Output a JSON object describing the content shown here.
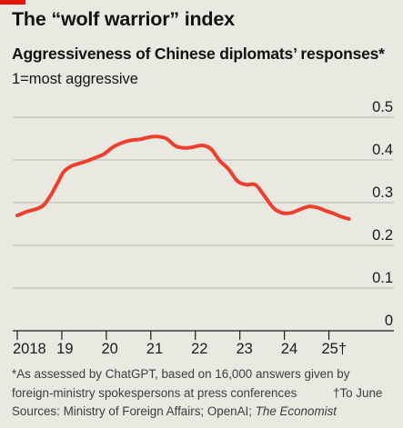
{
  "header": {
    "title": "The “wolf warrior” index",
    "subtitle": "Aggressiveness of Chinese diplomats’ responses*",
    "unit": "1=most aggressive"
  },
  "footnotes": {
    "line1": "*As assessed by ChatGPT, based on 16,000 answers given by",
    "line2": "foreign-ministry spokespersons at press conferences",
    "to_june": "†To June",
    "sources_prefix": "Sources: Ministry of Foreign Affairs; OpenAI; ",
    "sources_italic": "The Economist"
  },
  "colors": {
    "line": "#ee3e2e",
    "accent": "#e3120b",
    "grid": "#b8b8b2",
    "background": "#e9e8e1"
  },
  "chart_data": {
    "type": "line",
    "title": "Aggressiveness of Chinese diplomats’ responses*",
    "ylabel": "1=most aggressive",
    "ylim": [
      0,
      0.5
    ],
    "yticks": [
      0,
      0.1,
      0.2,
      0.3,
      0.4,
      0.5
    ],
    "ytick_labels": [
      "0",
      "0.1",
      "0.2",
      "0.3",
      "0.4",
      "0.5"
    ],
    "xlim": [
      2018.0,
      2025.5
    ],
    "xticks": [
      2018,
      2019,
      2020,
      2021,
      2022,
      2023,
      2024,
      2025
    ],
    "xtick_labels": [
      "2018",
      "19",
      "20",
      "21",
      "22",
      "23",
      "24",
      "25†"
    ],
    "grid": true,
    "series": [
      {
        "x": [
          2018.0,
          2018.25,
          2018.45,
          2018.6,
          2018.75,
          2018.9,
          2019.05,
          2019.25,
          2019.5,
          2019.75,
          2019.95,
          2020.15,
          2020.35,
          2020.55,
          2020.75,
          2020.95,
          2021.15,
          2021.35,
          2021.55,
          2021.75,
          2021.95,
          2022.15,
          2022.35,
          2022.55,
          2022.75,
          2022.95,
          2023.15,
          2023.35,
          2023.55,
          2023.75,
          2023.95,
          2024.15,
          2024.35,
          2024.55,
          2024.75,
          2024.95,
          2025.1,
          2025.25,
          2025.45
        ],
        "y": [
          0.27,
          0.28,
          0.286,
          0.295,
          0.317,
          0.345,
          0.373,
          0.387,
          0.395,
          0.405,
          0.414,
          0.43,
          0.44,
          0.446,
          0.448,
          0.453,
          0.455,
          0.45,
          0.433,
          0.428,
          0.43,
          0.434,
          0.426,
          0.398,
          0.378,
          0.35,
          0.342,
          0.342,
          0.316,
          0.288,
          0.276,
          0.276,
          0.284,
          0.291,
          0.288,
          0.28,
          0.275,
          0.268,
          0.262
        ]
      }
    ]
  }
}
